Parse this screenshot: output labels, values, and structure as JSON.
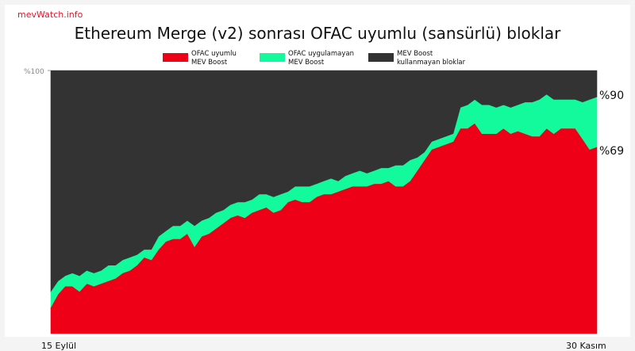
{
  "brand": "mevWatch.info",
  "chart_data": {
    "type": "area",
    "stacked": true,
    "title": "Ethereum Merge (v2) sonrası OFAC uyumlu (sansürlü) bloklar",
    "xlabel": "",
    "ylabel": "",
    "ylim": [
      0,
      100
    ],
    "y_tick_label": "%100",
    "x_start_label": "15 Eylül",
    "x_end_label": "30 Kasım",
    "legend_position": "top",
    "n_days": 77,
    "series": [
      {
        "name": "OFAC uyumlu\nMEV Boost",
        "color": "#ee0017",
        "values": [
          10,
          15,
          18,
          18,
          16,
          19,
          18,
          19,
          20,
          21,
          23,
          24,
          26,
          29,
          28,
          32,
          35,
          36,
          36,
          38,
          33,
          37,
          38,
          40,
          42,
          44,
          45,
          44,
          46,
          47,
          48,
          46,
          47,
          50,
          51,
          50,
          50,
          52,
          53,
          53,
          54,
          55,
          56,
          56,
          56,
          57,
          57,
          58,
          56,
          56,
          58,
          62,
          66,
          70,
          71,
          72,
          73,
          78,
          78,
          80,
          76,
          76,
          76,
          78,
          76,
          77,
          76,
          75,
          75,
          78,
          76,
          78,
          78,
          78,
          74,
          70,
          71
        ]
      },
      {
        "name": "OFAC uygulamayan\nMEV Boost",
        "color": "#13fa9c",
        "values": [
          6,
          5,
          4,
          5,
          6,
          5,
          5,
          5,
          6,
          5,
          5,
          5,
          4,
          3,
          4,
          5,
          4,
          5,
          5,
          5,
          8,
          6,
          6,
          6,
          5,
          5,
          5,
          6,
          5,
          6,
          5,
          6,
          6,
          4,
          5,
          6,
          6,
          5,
          5,
          6,
          4,
          5,
          5,
          6,
          5,
          5,
          6,
          5,
          8,
          8,
          8,
          5,
          3,
          3,
          3,
          3,
          3,
          8,
          9,
          9,
          11,
          11,
          10,
          9,
          10,
          10,
          12,
          13,
          14,
          13,
          13,
          11,
          11,
          11,
          14,
          19,
          19
        ]
      },
      {
        "name": "MEV Boost\nkullanmayan bloklar",
        "color": "#333333",
        "values": [
          84,
          80,
          78,
          77,
          78,
          76,
          77,
          76,
          74,
          74,
          72,
          71,
          70,
          68,
          68,
          63,
          61,
          59,
          59,
          57,
          59,
          57,
          56,
          54,
          53,
          51,
          50,
          50,
          49,
          47,
          47,
          48,
          47,
          46,
          44,
          44,
          44,
          43,
          42,
          41,
          42,
          40,
          39,
          38,
          39,
          38,
          37,
          37,
          36,
          36,
          34,
          33,
          31,
          27,
          26,
          25,
          24,
          14,
          13,
          11,
          13,
          13,
          14,
          13,
          14,
          13,
          12,
          12,
          11,
          9,
          11,
          11,
          11,
          11,
          12,
          11,
          10
        ]
      }
    ],
    "annotations": [
      {
        "text": "%90",
        "value": 90
      },
      {
        "text": "%69",
        "value": 69
      }
    ]
  }
}
